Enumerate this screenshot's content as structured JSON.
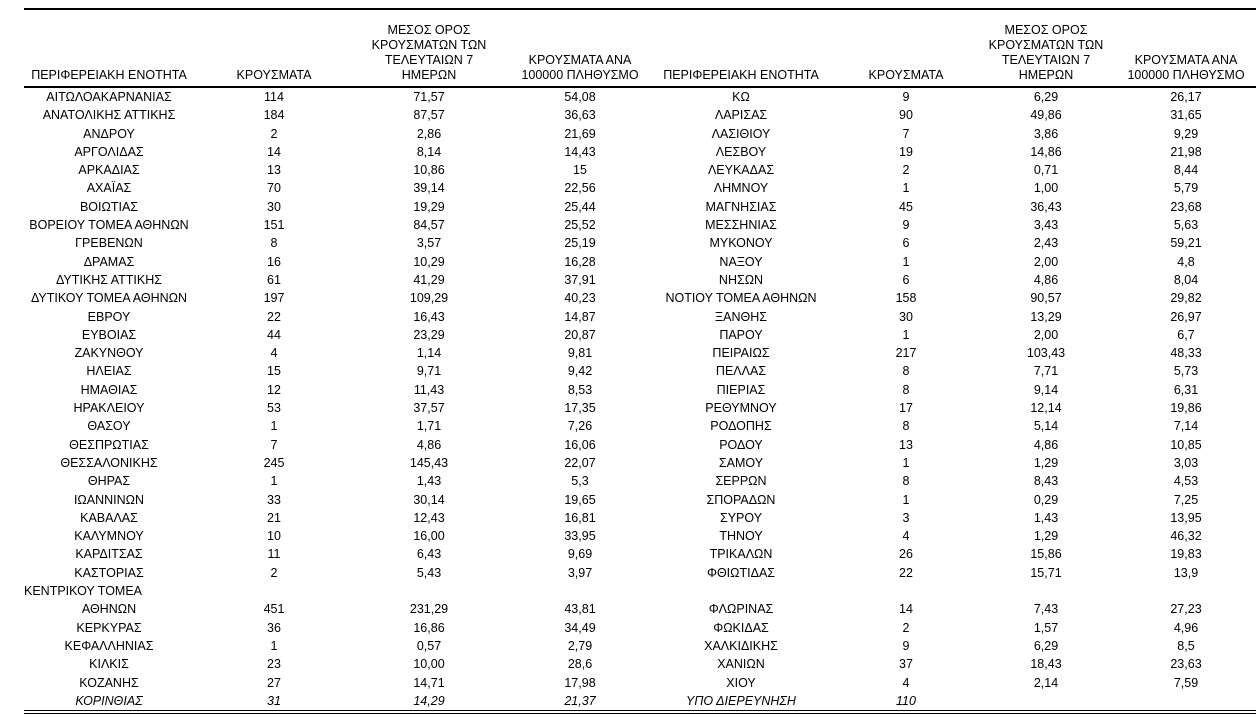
{
  "colors": {
    "background": "#ffffff",
    "text": "#000000",
    "rule": "#000000"
  },
  "table": {
    "column_headers": [
      "ΠΕΡΙΦΕΡΕΙΑΚΗ ΕΝΟΤΗΤΑ",
      "ΚΡΟΥΣΜΑΤΑ",
      "ΜΕΣΟΣ ΟΡΟΣ\nΚΡΟΥΣΜΑΤΩΝ ΤΩΝ\nΤΕΛΕΥΤΑΙΩΝ 7 ΗΜΕΡΩΝ",
      "ΚΡΟΥΣΜΑΤΑ ΑΝΑ\n100000 ΠΛΗΘΥΣΜΟ"
    ],
    "left_rows": [
      [
        "ΑΙΤΩΛΟΑΚΑΡΝΑΝΙΑΣ",
        "114",
        "71,57",
        "54,08"
      ],
      [
        "ΑΝΑΤΟΛΙΚΗΣ ΑΤΤΙΚΗΣ",
        "184",
        "87,57",
        "36,63"
      ],
      [
        "ΑΝΔΡΟΥ",
        "2",
        "2,86",
        "21,69"
      ],
      [
        "ΑΡΓΟΛΙΔΑΣ",
        "14",
        "8,14",
        "14,43"
      ],
      [
        "ΑΡΚΑΔΙΑΣ",
        "13",
        "10,86",
        "15"
      ],
      [
        "ΑΧΑΪΑΣ",
        "70",
        "39,14",
        "22,56"
      ],
      [
        "ΒΟΙΩΤΙΑΣ",
        "30",
        "19,29",
        "25,44"
      ],
      [
        "ΒΟΡΕΙΟΥ ΤΟΜΕΑ ΑΘΗΝΩΝ",
        "151",
        "84,57",
        "25,52"
      ],
      [
        "ΓΡΕΒΕΝΩΝ",
        "8",
        "3,57",
        "25,19"
      ],
      [
        "ΔΡΑΜΑΣ",
        "16",
        "10,29",
        "16,28"
      ],
      [
        "ΔΥΤΙΚΗΣ ΑΤΤΙΚΗΣ",
        "61",
        "41,29",
        "37,91"
      ],
      [
        "ΔΥΤΙΚΟΥ ΤΟΜΕΑ ΑΘΗΝΩΝ",
        "197",
        "109,29",
        "40,23"
      ],
      [
        "ΕΒΡΟΥ",
        "22",
        "16,43",
        "14,87"
      ],
      [
        "ΕΥΒΟΙΑΣ",
        "44",
        "23,29",
        "20,87"
      ],
      [
        "ΖΑΚΥΝΘΟΥ",
        "4",
        "1,14",
        "9,81"
      ],
      [
        "ΗΛΕΙΑΣ",
        "15",
        "9,71",
        "9,42"
      ],
      [
        "ΗΜΑΘΙΑΣ",
        "12",
        "11,43",
        "8,53"
      ],
      [
        "ΗΡΑΚΛΕΙΟΥ",
        "53",
        "37,57",
        "17,35"
      ],
      [
        "ΘΑΣΟΥ",
        "1",
        "1,71",
        "7,26"
      ],
      [
        "ΘΕΣΠΡΩΤΙΑΣ",
        "7",
        "4,86",
        "16,06"
      ],
      [
        "ΘΕΣΣΑΛΟΝΙΚΗΣ",
        "245",
        "145,43",
        "22,07"
      ],
      [
        "ΘΗΡΑΣ",
        "1",
        "1,43",
        "5,3"
      ],
      [
        "ΙΩΑΝΝΙΝΩΝ",
        "33",
        "30,14",
        "19,65"
      ],
      [
        "ΚΑΒΑΛΑΣ",
        "21",
        "12,43",
        "16,81"
      ],
      [
        "ΚΑΛΥΜΝΟΥ",
        "10",
        "16,00",
        "33,95"
      ],
      [
        "ΚΑΡΔΙΤΣΑΣ",
        "11",
        "6,43",
        "9,69"
      ],
      [
        "ΚΑΣΤΟΡΙΑΣ",
        "2",
        "5,43",
        "3,97"
      ],
      [
        "ΚΕΝΤΡΙΚΟΥ ΤΟΜΕΑ",
        "",
        "",
        "",
        "wrap-label"
      ],
      [
        "ΑΘΗΝΩΝ",
        "451",
        "231,29",
        "43,81"
      ],
      [
        "ΚΕΡΚΥΡΑΣ",
        "36",
        "16,86",
        "34,49"
      ],
      [
        "ΚΕΦΑΛΛΗΝΙΑΣ",
        "1",
        "0,57",
        "2,79"
      ],
      [
        "ΚΙΛΚΙΣ",
        "23",
        "10,00",
        "28,6"
      ],
      [
        "ΚΟΖΑΝΗΣ",
        "27",
        "14,71",
        "17,98"
      ],
      [
        "ΚΟΡΙΝΘΙΑΣ",
        "31",
        "14,29",
        "21,37"
      ]
    ],
    "right_rows": [
      [
        "ΚΩ",
        "9",
        "6,29",
        "26,17"
      ],
      [
        "ΛΑΡΙΣΑΣ",
        "90",
        "49,86",
        "31,65"
      ],
      [
        "ΛΑΣΙΘΙΟΥ",
        "7",
        "3,86",
        "9,29"
      ],
      [
        "ΛΕΣΒΟΥ",
        "19",
        "14,86",
        "21,98"
      ],
      [
        "ΛΕΥΚΑΔΑΣ",
        "2",
        "0,71",
        "8,44"
      ],
      [
        "ΛΗΜΝΟΥ",
        "1",
        "1,00",
        "5,79"
      ],
      [
        "ΜΑΓΝΗΣΙΑΣ",
        "45",
        "36,43",
        "23,68"
      ],
      [
        "ΜΕΣΣΗΝΙΑΣ",
        "9",
        "3,43",
        "5,63"
      ],
      [
        "ΜΥΚΟΝΟΥ",
        "6",
        "2,43",
        "59,21"
      ],
      [
        "ΝΑΞΟΥ",
        "1",
        "2,00",
        "4,8"
      ],
      [
        "ΝΗΣΩΝ",
        "6",
        "4,86",
        "8,04"
      ],
      [
        "ΝΟΤΙΟΥ ΤΟΜΕΑ ΑΘΗΝΩΝ",
        "158",
        "90,57",
        "29,82"
      ],
      [
        "ΞΑΝΘΗΣ",
        "30",
        "13,29",
        "26,97"
      ],
      [
        "ΠΑΡΟΥ",
        "1",
        "2,00",
        "6,7"
      ],
      [
        "ΠΕΙΡΑΙΩΣ",
        "217",
        "103,43",
        "48,33"
      ],
      [
        "ΠΕΛΛΑΣ",
        "8",
        "7,71",
        "5,73"
      ],
      [
        "ΠΙΕΡΙΑΣ",
        "8",
        "9,14",
        "6,31"
      ],
      [
        "ΡΕΘΥΜΝΟΥ",
        "17",
        "12,14",
        "19,86"
      ],
      [
        "ΡΟΔΟΠΗΣ",
        "8",
        "5,14",
        "7,14"
      ],
      [
        "ΡΟΔΟΥ",
        "13",
        "4,86",
        "10,85"
      ],
      [
        "ΣΑΜΟΥ",
        "1",
        "1,29",
        "3,03"
      ],
      [
        "ΣΕΡΡΩΝ",
        "8",
        "8,43",
        "4,53"
      ],
      [
        "ΣΠΟΡΑΔΩΝ",
        "1",
        "0,29",
        "7,25"
      ],
      [
        "ΣΥΡΟΥ",
        "3",
        "1,43",
        "13,95"
      ],
      [
        "ΤΗΝΟΥ",
        "4",
        "1,29",
        "46,32"
      ],
      [
        "ΤΡΙΚΑΛΩΝ",
        "26",
        "15,86",
        "19,83"
      ],
      [
        "ΦΘΙΩΤΙΔΑΣ",
        "22",
        "15,71",
        "13,9"
      ],
      [
        "",
        "",
        "",
        ""
      ],
      [
        "ΦΛΩΡΙΝΑΣ",
        "14",
        "7,43",
        "27,23"
      ],
      [
        "ΦΩΚΙΔΑΣ",
        "2",
        "1,57",
        "4,96"
      ],
      [
        "ΧΑΛΚΙΔΙΚΗΣ",
        "9",
        "6,29",
        "8,5"
      ],
      [
        "ΧΑΝΙΩΝ",
        "37",
        "18,43",
        "23,63"
      ],
      [
        "ΧΙΟΥ",
        "4",
        "2,14",
        "7,59"
      ],
      [
        "ΥΠΟ ΔΙΕΡΕΥΝΗΣΗ",
        "110",
        "",
        "",
        "italic"
      ]
    ]
  }
}
